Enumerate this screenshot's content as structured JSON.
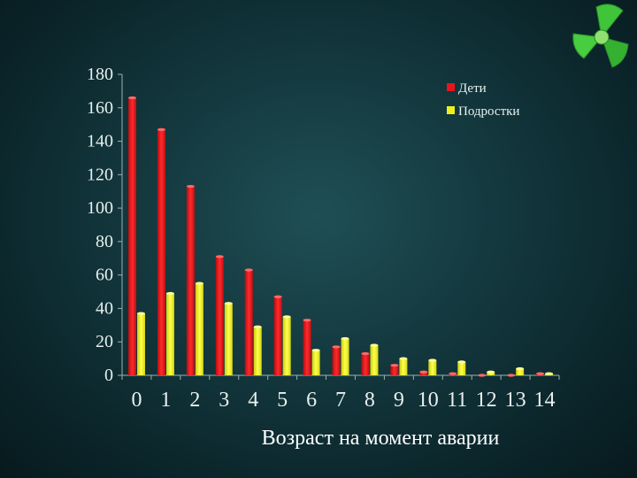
{
  "chart_data": {
    "type": "bar",
    "categories": [
      "0",
      "1",
      "2",
      "3",
      "4",
      "5",
      "6",
      "7",
      "8",
      "9",
      "10",
      "11",
      "12",
      "13",
      "14"
    ],
    "series": [
      {
        "name": "Дети",
        "color": "#e8141a",
        "values": [
          166,
          147,
          113,
          71,
          63,
          47,
          33,
          17,
          13,
          6,
          2,
          1,
          0,
          0,
          1
        ]
      },
      {
        "name": "Подростки",
        "color": "#eef01a",
        "values": [
          37,
          49,
          55,
          43,
          29,
          35,
          15,
          22,
          18,
          10,
          9,
          8,
          2,
          4,
          1
        ]
      }
    ],
    "yticks": [
      0,
      20,
      40,
      60,
      80,
      100,
      120,
      140,
      160,
      180
    ],
    "ylim": [
      0,
      180
    ],
    "xlabel": "Возраст на момент аварии",
    "ylabel": "",
    "grid": false,
    "legend": "top-right"
  },
  "logo": {
    "icon": "green-propeller-logo-icon",
    "color": "#3fc43a"
  }
}
